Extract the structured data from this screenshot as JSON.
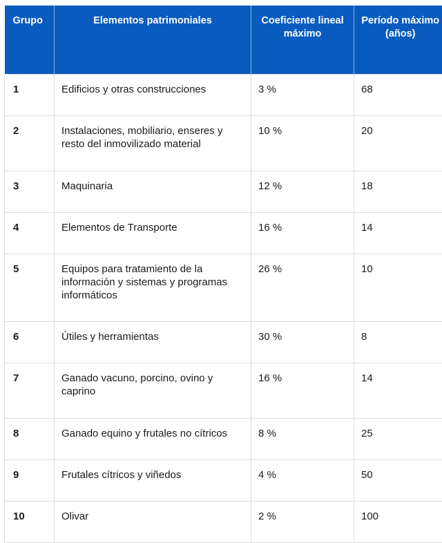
{
  "table": {
    "headers": [
      "Grupo",
      "Elementos patrimoniales",
      "Coeficiente lineal máximo",
      "Período máximo (años)"
    ],
    "rows": [
      {
        "grupo": "1",
        "elementos": "Edificios y otras construcciones",
        "coeficiente": "3 %",
        "periodo": "68"
      },
      {
        "grupo": "2",
        "elementos": "Instalaciones, mobiliario, enseres y resto del inmovilizado material",
        "coeficiente": "10 %",
        "periodo": "20"
      },
      {
        "grupo": "3",
        "elementos": "Maquinaria",
        "coeficiente": "12 %",
        "periodo": "18"
      },
      {
        "grupo": "4",
        "elementos": "Elementos de Transporte",
        "coeficiente": "16 %",
        "periodo": "14"
      },
      {
        "grupo": "5",
        "elementos": "Equipos para tratamiento de la información y sistemas y programas informáticos",
        "coeficiente": "26 %",
        "periodo": "10"
      },
      {
        "grupo": "6",
        "elementos": "Útiles y herramientas",
        "coeficiente": "30 %",
        "periodo": "8"
      },
      {
        "grupo": "7",
        "elementos": "Ganado vacuno, porcino, ovino y caprino",
        "coeficiente": "16 %",
        "periodo": "14"
      },
      {
        "grupo": "8",
        "elementos": "Ganado equino y frutales no cítricos",
        "coeficiente": "8 %",
        "periodo": "25"
      },
      {
        "grupo": "9",
        "elementos": "Frutales cítricos y viñedos",
        "coeficiente": "4 %",
        "periodo": "50"
      },
      {
        "grupo": "10",
        "elementos": "Olivar",
        "coeficiente": "2 %",
        "periodo": "100"
      }
    ]
  },
  "colors": {
    "header_bg": "#0a5bbf",
    "header_text": "#ffffff",
    "border": "#dcdcdc"
  }
}
